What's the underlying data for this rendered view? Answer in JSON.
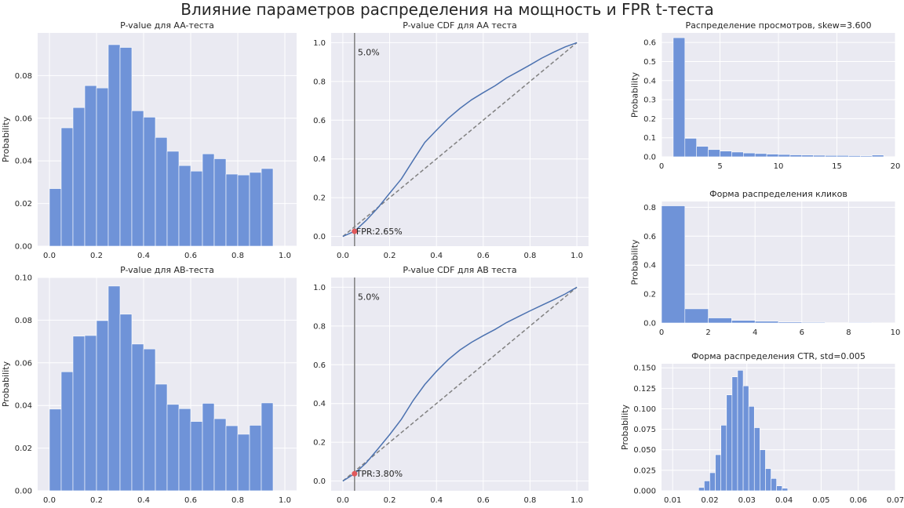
{
  "figure": {
    "suptitle": "Влияние параметров распределения на мощность и FPR t-теста",
    "colors": {
      "bar": "#6f93d8",
      "bg": "#eaeaf2",
      "grid": "#ffffff",
      "cdf": "#4c72b0",
      "diag": "#808080",
      "vline": "#808080",
      "point": "#e0595b"
    }
  },
  "chart_data": [
    {
      "id": "aa-hist",
      "type": "bar",
      "title": "P-value для AA-теста",
      "ylabel": "Probability",
      "xlim": [
        -0.05,
        1.05
      ],
      "ylim": [
        0,
        0.1
      ],
      "xticks": [
        0,
        0.2,
        0.4,
        0.6,
        0.8,
        1.0
      ],
      "xtick_labels": [
        "0.0",
        "0.2",
        "0.4",
        "0.6",
        "0.8",
        "1.0"
      ],
      "yticks": [
        0,
        0.02,
        0.04,
        0.06,
        0.08
      ],
      "ytick_labels": [
        "0.00",
        "0.02",
        "0.04",
        "0.06",
        "0.08"
      ],
      "bin_start": 0,
      "bin_width": 0.05,
      "values": [
        0.027,
        0.0555,
        0.065,
        0.0753,
        0.0742,
        0.0945,
        0.0932,
        0.0635,
        0.0605,
        0.051,
        0.0445,
        0.0378,
        0.0352,
        0.0433,
        0.041,
        0.0338,
        0.0334,
        0.0346,
        0.0364
      ]
    },
    {
      "id": "aa-cdf",
      "type": "line",
      "title": "P-value CDF для AA теста",
      "xlim": [
        -0.05,
        1.05
      ],
      "ylim": [
        -0.05,
        1.05
      ],
      "xticks": [
        0,
        0.2,
        0.4,
        0.6,
        0.8,
        1.0
      ],
      "xtick_labels": [
        "0.0",
        "0.2",
        "0.4",
        "0.6",
        "0.8",
        "1.0"
      ],
      "yticks": [
        0,
        0.2,
        0.4,
        0.6,
        0.8,
        1.0
      ],
      "ytick_labels": [
        "0.0",
        "0.2",
        "0.4",
        "0.6",
        "0.8",
        "1.0"
      ],
      "vline_x": 0.05,
      "vline_label": "5.0%",
      "point": {
        "x": 0.05,
        "y": 0.0265,
        "label": "FPR:2.65%"
      },
      "series": [
        {
          "x": [
            0,
            0.05,
            0.1,
            0.15,
            0.2,
            0.25,
            0.3,
            0.35,
            0.4,
            0.45,
            0.5,
            0.55,
            0.6,
            0.65,
            0.7,
            0.75,
            0.8,
            0.85,
            0.9,
            0.95,
            1.0
          ],
          "y": [
            0,
            0.027,
            0.083,
            0.148,
            0.223,
            0.297,
            0.392,
            0.485,
            0.548,
            0.609,
            0.66,
            0.705,
            0.742,
            0.777,
            0.818,
            0.851,
            0.885,
            0.92,
            0.95,
            0.978,
            1.0
          ]
        },
        {
          "x": [
            0,
            1
          ],
          "y": [
            0,
            1
          ]
        }
      ]
    },
    {
      "id": "ab-hist",
      "type": "bar",
      "title": "P-value для AB-теста",
      "ylabel": "Probability",
      "xlim": [
        -0.05,
        1.05
      ],
      "ylim": [
        0,
        0.1
      ],
      "xticks": [
        0,
        0.2,
        0.4,
        0.6,
        0.8,
        1.0
      ],
      "xtick_labels": [
        "0.0",
        "0.2",
        "0.4",
        "0.6",
        "0.8",
        "1.0"
      ],
      "yticks": [
        0,
        0.02,
        0.04,
        0.06,
        0.08,
        0.1
      ],
      "ytick_labels": [
        "0.00",
        "0.02",
        "0.04",
        "0.06",
        "0.08",
        "0.10"
      ],
      "bin_start": 0,
      "bin_width": 0.05,
      "values": [
        0.0383,
        0.0558,
        0.0725,
        0.0728,
        0.0798,
        0.096,
        0.0828,
        0.0688,
        0.0665,
        0.05,
        0.0405,
        0.0385,
        0.0325,
        0.041,
        0.0338,
        0.0305,
        0.0265,
        0.0307,
        0.0412
      ]
    },
    {
      "id": "ab-cdf",
      "type": "line",
      "title": "P-value CDF для AB теста",
      "xlim": [
        -0.05,
        1.05
      ],
      "ylim": [
        -0.05,
        1.05
      ],
      "xticks": [
        0,
        0.2,
        0.4,
        0.6,
        0.8,
        1.0
      ],
      "xtick_labels": [
        "0.0",
        "0.2",
        "0.4",
        "0.6",
        "0.8",
        "1.0"
      ],
      "yticks": [
        0,
        0.2,
        0.4,
        0.6,
        0.8,
        1.0
      ],
      "ytick_labels": [
        "0.0",
        "0.2",
        "0.4",
        "0.6",
        "0.8",
        "1.0"
      ],
      "vline_x": 0.05,
      "vline_label": "5.0%",
      "point": {
        "x": 0.05,
        "y": 0.038,
        "label": "TPR:3.80%"
      },
      "series": [
        {
          "x": [
            0,
            0.05,
            0.1,
            0.15,
            0.2,
            0.25,
            0.3,
            0.35,
            0.4,
            0.45,
            0.5,
            0.55,
            0.6,
            0.65,
            0.7,
            0.75,
            0.8,
            0.85,
            0.9,
            0.95,
            1.0
          ],
          "y": [
            0,
            0.038,
            0.094,
            0.166,
            0.239,
            0.319,
            0.415,
            0.498,
            0.566,
            0.626,
            0.676,
            0.716,
            0.75,
            0.782,
            0.818,
            0.848,
            0.878,
            0.907,
            0.935,
            0.965,
            1.0
          ]
        },
        {
          "x": [
            0,
            1
          ],
          "y": [
            0,
            1
          ]
        }
      ]
    },
    {
      "id": "views-hist",
      "type": "bar",
      "title": "Распределение просмотров, skew=3.600",
      "ylabel": "Probability",
      "xlim": [
        0,
        20
      ],
      "ylim": [
        0,
        0.65
      ],
      "xticks": [
        0,
        5,
        10,
        15,
        20
      ],
      "xtick_labels": [
        "0",
        "5",
        "10",
        "15",
        "20"
      ],
      "yticks": [
        0,
        0.1,
        0.2,
        0.3,
        0.4,
        0.5,
        0.6
      ],
      "ytick_labels": [
        "0.0",
        "0.1",
        "0.2",
        "0.3",
        "0.4",
        "0.5",
        "0.6"
      ],
      "bin_start": 1,
      "bin_width": 1,
      "values": [
        0.625,
        0.097,
        0.055,
        0.038,
        0.03,
        0.025,
        0.02,
        0.017,
        0.014,
        0.012,
        0.01,
        0.009,
        0.008,
        0.007,
        0.007,
        0.006,
        0.005,
        0.009
      ]
    },
    {
      "id": "clicks-hist",
      "type": "bar",
      "title": "Форма распределения кликов",
      "ylabel": "Probability",
      "xlim": [
        0,
        10
      ],
      "ylim": [
        0,
        0.84
      ],
      "xticks": [
        0,
        2,
        4,
        6,
        8,
        10
      ],
      "xtick_labels": [
        "0",
        "2",
        "4",
        "6",
        "8",
        "10"
      ],
      "yticks": [
        0,
        0.2,
        0.4,
        0.6,
        0.8
      ],
      "ytick_labels": [
        "0.0",
        "0.2",
        "0.4",
        "0.6",
        "0.8"
      ],
      "bin_start": 0,
      "bin_width": 1,
      "values": [
        0.81,
        0.098,
        0.035,
        0.018,
        0.012,
        0.007,
        0.005,
        0.002,
        0.004,
        0.0
      ]
    },
    {
      "id": "ctr-hist",
      "type": "bar",
      "title": "Форма распределения CTR, std=0.005",
      "ylabel": "Probability",
      "xlim": [
        0.007,
        0.07
      ],
      "ylim": [
        0,
        0.155
      ],
      "xticks": [
        0.01,
        0.02,
        0.03,
        0.04,
        0.05,
        0.06,
        0.07
      ],
      "xtick_labels": [
        "0.01",
        "0.02",
        "0.03",
        "0.04",
        "0.05",
        "0.06",
        "0.07"
      ],
      "yticks": [
        0,
        0.025,
        0.05,
        0.075,
        0.1,
        0.125,
        0.15
      ],
      "ytick_labels": [
        "0.000",
        "0.025",
        "0.050",
        "0.075",
        "0.100",
        "0.125",
        "0.150"
      ],
      "bin_start": 0.017,
      "bin_width": 0.0015,
      "values": [
        0.004,
        0.012,
        0.022,
        0.044,
        0.08,
        0.117,
        0.139,
        0.147,
        0.128,
        0.103,
        0.077,
        0.05,
        0.027,
        0.015,
        0.006,
        0.003
      ]
    }
  ]
}
